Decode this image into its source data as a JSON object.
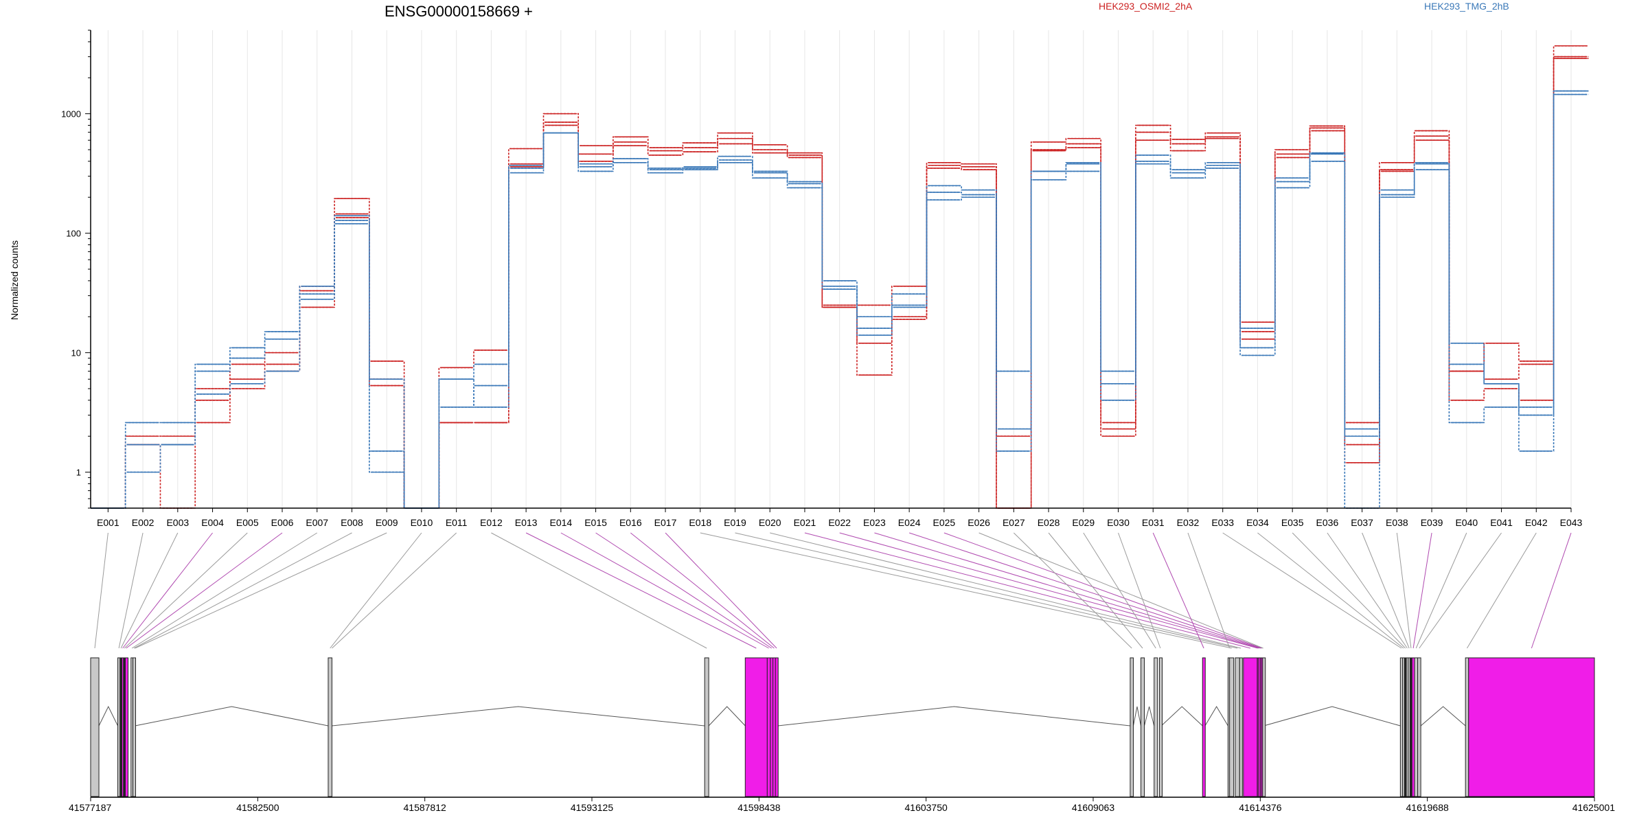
{
  "chart_data": {
    "type": "line",
    "title": "ENSG00000158669 +",
    "ylabel": "Normalized counts",
    "xlabel": "",
    "y_scale": "log",
    "ylim": [
      0.5,
      5000
    ],
    "y_ticks": [
      {
        "value": 1,
        "label": "1"
      },
      {
        "value": 10,
        "label": "10"
      },
      {
        "value": 100,
        "label": "100"
      },
      {
        "value": 1000,
        "label": "1000"
      }
    ],
    "grid": "vertical",
    "legend_position": "top",
    "categories": [
      "E001",
      "E002",
      "E003",
      "E004",
      "E005",
      "E006",
      "E007",
      "E008",
      "E009",
      "E010",
      "E011",
      "E012",
      "E013",
      "E014",
      "E015",
      "E016",
      "E017",
      "E018",
      "E019",
      "E020",
      "E021",
      "E022",
      "E023",
      "E024",
      "E025",
      "E026",
      "E027",
      "E028",
      "E029",
      "E030",
      "E031",
      "E032",
      "E033",
      "E034",
      "E035",
      "E036",
      "E037",
      "E038",
      "E039",
      "E040",
      "E041",
      "E042",
      "E043"
    ],
    "series": [
      {
        "name": "HEK293_OSMI2_2hA",
        "group": "HEK293_OSMI2_2hA",
        "color": "#cc2222",
        "values": [
          0.5,
          2.0,
          2.0,
          5.0,
          8.0,
          10,
          24,
          195,
          8.5,
          0.5,
          7.5,
          10.5,
          510,
          1000,
          540,
          640,
          520,
          570,
          690,
          550,
          470,
          25,
          25,
          36,
          390,
          380,
          0.5,
          580,
          620,
          2.6,
          800,
          610,
          690,
          18,
          500,
          790,
          2.6,
          390,
          720,
          7.0,
          12,
          8.5,
          3700
        ]
      },
      {
        "name": "HEK293_OSMI2_2hA",
        "group": "HEK293_OSMI2_2hA",
        "color": "#cc2222",
        "values": [
          0.5,
          1.7,
          1.7,
          4.0,
          6.0,
          8.0,
          33,
          145,
          6.0,
          0.5,
          2.6,
          2.6,
          380,
          850,
          460,
          580,
          490,
          520,
          620,
          500,
          450,
          24,
          12,
          20,
          370,
          360,
          2.0,
          500,
          560,
          2.3,
          700,
          560,
          640,
          15,
          460,
          760,
          1.7,
          340,
          650,
          7.0,
          6.0,
          8.0,
          3000
        ]
      },
      {
        "name": "HEK293_OSMI2_2hA",
        "group": "HEK293_OSMI2_2hA",
        "color": "#cc2222",
        "values": [
          0.5,
          1.7,
          0.5,
          2.6,
          5.0,
          7.0,
          36,
          135,
          5.3,
          0.5,
          2.6,
          2.6,
          360,
          800,
          400,
          540,
          450,
          480,
          560,
          470,
          430,
          24,
          6.5,
          19,
          350,
          340,
          0.5,
          490,
          520,
          2.0,
          600,
          490,
          620,
          13,
          430,
          720,
          1.2,
          330,
          600,
          4.0,
          5.0,
          4.0,
          2900
        ]
      },
      {
        "name": "HEK293_TMG_2hB",
        "group": "HEK293_TMG_2hB",
        "color": "#3a78b8",
        "values": [
          0.5,
          2.6,
          2.6,
          8.0,
          11,
          15,
          36,
          140,
          6.0,
          0.5,
          6.0,
          8.0,
          370,
          690,
          380,
          420,
          350,
          360,
          440,
          330,
          270,
          40,
          20,
          31,
          250,
          230,
          7.0,
          330,
          390,
          7.0,
          450,
          340,
          390,
          16,
          290,
          470,
          2.3,
          230,
          390,
          12,
          5.5,
          3.0,
          1550
        ]
      },
      {
        "name": "HEK293_TMG_2hB",
        "group": "HEK293_TMG_2hB",
        "color": "#3a78b8",
        "values": [
          0.5,
          1.7,
          1.7,
          7.0,
          9.0,
          13,
          31,
          128,
          1.5,
          0.5,
          3.5,
          5.3,
          350,
          690,
          360,
          420,
          340,
          350,
          410,
          320,
          260,
          36,
          16,
          25,
          220,
          210,
          2.3,
          330,
          380,
          5.5,
          400,
          320,
          370,
          11,
          270,
          460,
          2.0,
          210,
          380,
          8.0,
          5.5,
          3.5,
          1550
        ]
      },
      {
        "name": "HEK293_TMG_2hB",
        "group": "HEK293_TMG_2hB",
        "color": "#3a78b8",
        "values": [
          0.5,
          1.0,
          1.7,
          4.5,
          5.5,
          7.0,
          28,
          120,
          1.0,
          0.5,
          6.0,
          3.5,
          320,
          690,
          330,
          390,
          320,
          340,
          390,
          290,
          240,
          34,
          14,
          24,
          190,
          200,
          1.5,
          280,
          330,
          4.0,
          380,
          290,
          350,
          9.5,
          240,
          400,
          0.5,
          200,
          340,
          2.6,
          3.5,
          1.5,
          1450
        ]
      }
    ],
    "genomic_axis": {
      "coordinates": [
        "41577187",
        "41582500",
        "41587812",
        "41593125",
        "41598438",
        "41603750",
        "41609063",
        "41614376",
        "41619688",
        "41625001"
      ],
      "exons": [
        {
          "id": "E001",
          "start": 41577187,
          "end": 41577450,
          "type": "constitutive"
        },
        {
          "id": "E002",
          "start": 41578050,
          "end": 41578120,
          "type": "constitutive"
        },
        {
          "id": "E003",
          "start": 41578120,
          "end": 41578180,
          "type": "dark"
        },
        {
          "id": "E004",
          "start": 41578180,
          "end": 41578230,
          "type": "differential"
        },
        {
          "id": "E005",
          "start": 41578230,
          "end": 41578290,
          "type": "dark"
        },
        {
          "id": "E006",
          "start": 41578290,
          "end": 41578340,
          "type": "differential"
        },
        {
          "id": "E007",
          "start": 41578470,
          "end": 41578530,
          "type": "constitutive"
        },
        {
          "id": "E008",
          "start": 41578530,
          "end": 41578600,
          "type": "constitutive"
        },
        {
          "id": "E010",
          "start": 41584740,
          "end": 41584860,
          "type": "constitutive"
        },
        {
          "id": "E012",
          "start": 41596710,
          "end": 41596840,
          "type": "constitutive"
        },
        {
          "id": "E013",
          "start": 41598000,
          "end": 41598700,
          "type": "differential"
        },
        {
          "id": "E014",
          "start": 41598700,
          "end": 41598800,
          "type": "differential"
        },
        {
          "id": "E015",
          "start": 41598800,
          "end": 41598880,
          "type": "differential"
        },
        {
          "id": "E016",
          "start": 41598880,
          "end": 41598960,
          "type": "differential"
        },
        {
          "id": "E017",
          "start": 41598960,
          "end": 41599040,
          "type": "differential"
        },
        {
          "id": "E018",
          "start": 41613400,
          "end": 41613530,
          "type": "constitutive"
        },
        {
          "id": "E019",
          "start": 41613580,
          "end": 41613720,
          "type": "constitutive"
        },
        {
          "id": "E020",
          "start": 41613720,
          "end": 41613800,
          "type": "constitutive"
        },
        {
          "id": "E021",
          "start": 41613840,
          "end": 41614280,
          "type": "differential"
        },
        {
          "id": "E022",
          "start": 41614280,
          "end": 41614310,
          "type": "differential"
        },
        {
          "id": "E023",
          "start": 41614310,
          "end": 41614370,
          "type": "differential"
        },
        {
          "id": "E024",
          "start": 41614370,
          "end": 41614410,
          "type": "differential"
        },
        {
          "id": "E025",
          "start": 41614410,
          "end": 41614450,
          "type": "differential"
        },
        {
          "id": "E026",
          "start": 41614450,
          "end": 41614490,
          "type": "constitutive"
        },
        {
          "id": "E027",
          "start": 41610240,
          "end": 41610340,
          "type": "constitutive"
        },
        {
          "id": "E028",
          "start": 41610580,
          "end": 41610690,
          "type": "constitutive"
        },
        {
          "id": "E029",
          "start": 41611000,
          "end": 41611110,
          "type": "constitutive"
        },
        {
          "id": "E030",
          "start": 41611170,
          "end": 41611230,
          "type": "constitutive"
        },
        {
          "id": "E031",
          "start": 41612540,
          "end": 41612620,
          "type": "differential"
        },
        {
          "id": "E032",
          "start": 41613350,
          "end": 41613450,
          "type": "constitutive"
        },
        {
          "id": "E033",
          "start": 41618830,
          "end": 41618900,
          "type": "constitutive"
        },
        {
          "id": "E034",
          "start": 41618900,
          "end": 41618960,
          "type": "constitutive"
        },
        {
          "id": "E035",
          "start": 41618960,
          "end": 41619020,
          "type": "dark"
        },
        {
          "id": "E036",
          "start": 41619020,
          "end": 41619080,
          "type": "constitutive"
        },
        {
          "id": "E037",
          "start": 41619080,
          "end": 41619140,
          "type": "constitutive"
        },
        {
          "id": "E038",
          "start": 41619140,
          "end": 41619200,
          "type": "dark"
        },
        {
          "id": "E039",
          "start": 41619200,
          "end": 41619280,
          "type": "differential"
        },
        {
          "id": "E040",
          "start": 41619280,
          "end": 41619380,
          "type": "constitutive"
        },
        {
          "id": "E041",
          "start": 41619380,
          "end": 41619480,
          "type": "constitutive"
        },
        {
          "id": "E042",
          "start": 41620900,
          "end": 41621000,
          "type": "constitutive"
        },
        {
          "id": "E043",
          "start": 41621000,
          "end": 41625001,
          "type": "differential"
        }
      ]
    }
  },
  "colors": {
    "osmi": "#cc2222",
    "tmg": "#3a78b8",
    "differential_exon": "#f01de8",
    "differential_link": "#b04ab0",
    "constitutive_exon": "#c8c8c8",
    "dark_exon": "#222222",
    "link": "#9a9a9a",
    "grid": "#e6e6e6"
  },
  "legend": [
    "HEK293_OSMI2_2hA",
    "HEK293_TMG_2hB"
  ]
}
